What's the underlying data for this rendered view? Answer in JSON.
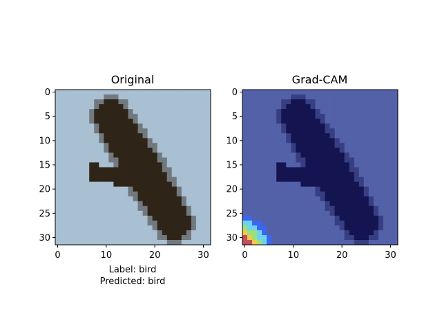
{
  "chart_data": [
    {
      "type": "heatmap",
      "title": "Original",
      "description_text_lines": [
        "Label: bird",
        "Predicted: bird"
      ],
      "xticks": [
        0,
        10,
        20,
        30
      ],
      "yticks": [
        0,
        5,
        10,
        15,
        20,
        25,
        30
      ],
      "xlim": [
        -0.5,
        31.5
      ],
      "ylim": [
        31.5,
        -0.5
      ],
      "grid": false,
      "image_size": [
        32,
        32
      ],
      "colors": {
        "sky": "#a9bfd2",
        "bird": "#2e2418"
      }
    },
    {
      "type": "heatmap",
      "title": "Grad-CAM",
      "xticks": [
        0,
        10,
        20,
        30
      ],
      "yticks": [
        0,
        5,
        10,
        15,
        20,
        25,
        30
      ],
      "xlim": [
        -0.5,
        31.5
      ],
      "ylim": [
        31.5,
        -0.5
      ],
      "grid": false,
      "image_size": [
        32,
        32
      ],
      "colors": {
        "background": "#5361a8",
        "bird": "#141451",
        "hotspot_colormap": [
          "#3b66f2",
          "#6fd3f0",
          "#9be07a",
          "#f2c94c",
          "#c0505a"
        ]
      }
    }
  ]
}
